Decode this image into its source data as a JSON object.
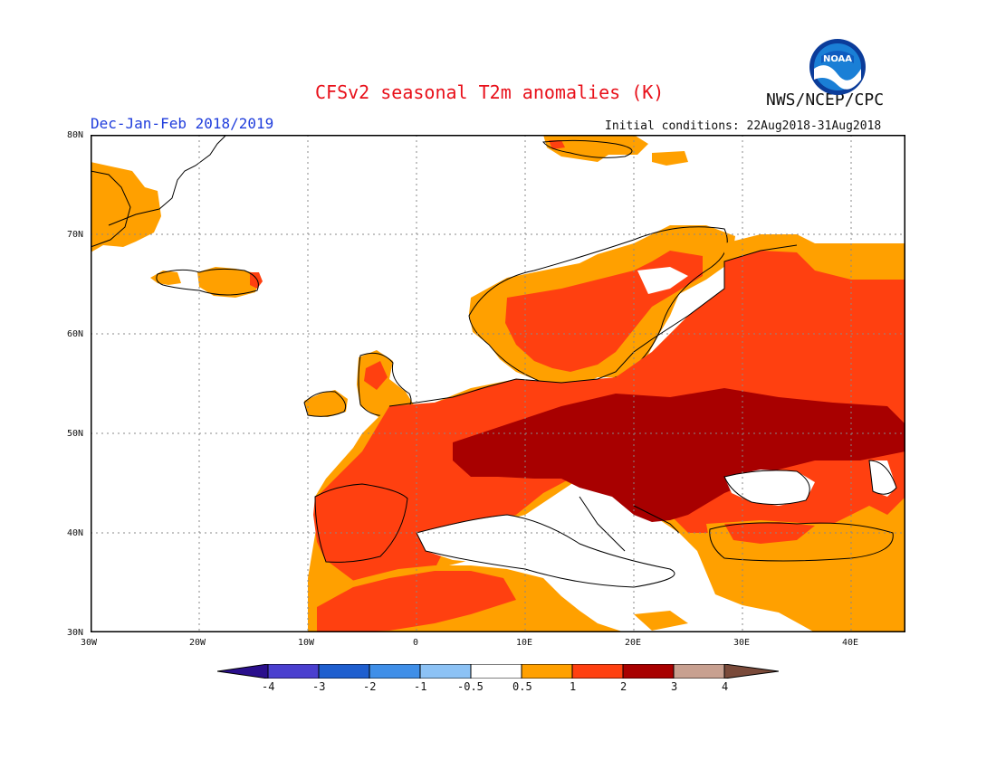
{
  "header": {
    "title": "CFSv2 seasonal T2m anomalies (K)",
    "agency": "NWS/NCEP/CPC",
    "period": "Dec-Jan-Feb 2018/2019",
    "initial_conditions": "Initial conditions: 22Aug2018-31Aug2018",
    "logo_text": "NOAA"
  },
  "map": {
    "lon_labels": [
      "30W",
      "20W",
      "10W",
      "0",
      "10E",
      "20E",
      "30E",
      "40E"
    ],
    "lat_labels": [
      "80N",
      "70N",
      "60N",
      "50N",
      "40N",
      "30N"
    ]
  },
  "legend": {
    "labels": [
      "-4",
      "-3",
      "-2",
      "-1",
      "-0.5",
      "0.5",
      "1",
      "2",
      "3",
      "4"
    ],
    "colors": {
      "lt_-4": "#2a0f8c",
      "-4_-3": "#4a3fcf",
      "-3_-2": "#1f5fcf",
      "-2_-1": "#3f8fe8",
      "-1_-0.5": "#8cc2f5",
      "-0.5_0.5": "#ffffff",
      "0.5_1": "#ffa000",
      "1_2": "#ff4010",
      "2_3": "#a80000",
      "3_4": "#c8a090",
      "gt_4": "#7a4a3a"
    }
  }
}
